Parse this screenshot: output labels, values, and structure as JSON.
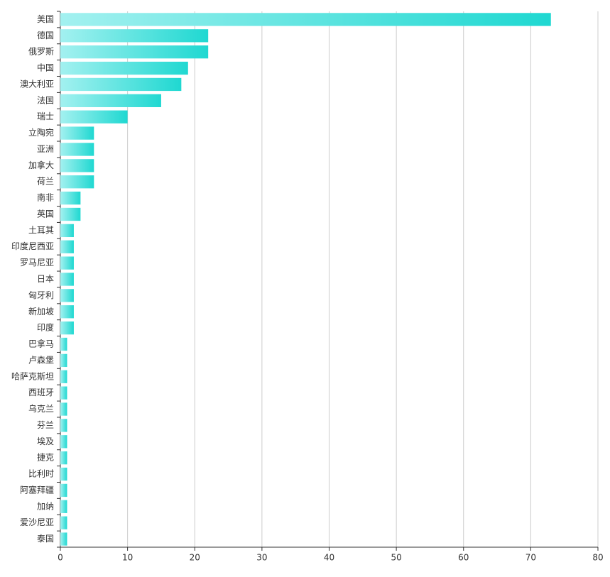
{
  "chart_data": {
    "type": "hbar",
    "categories": [
      "美国",
      "德国",
      "俄罗斯",
      "中国",
      "澳大利亚",
      "法国",
      "瑞士",
      "立陶宛",
      "亚洲",
      "加拿大",
      "荷兰",
      "南非",
      "英国",
      "土耳其",
      "印度尼西亚",
      "罗马尼亚",
      "日本",
      "匈牙利",
      "新加坡",
      "印度",
      "巴拿马",
      "卢森堡",
      "哈萨克斯坦",
      "西班牙",
      "乌克兰",
      "芬兰",
      "埃及",
      "捷克",
      "比利时",
      "阿塞拜疆",
      "加纳",
      "爱沙尼亚",
      "泰国"
    ],
    "values": [
      73,
      22,
      22,
      19,
      18,
      15,
      10,
      5,
      5,
      5,
      5,
      3,
      3,
      2,
      2,
      2,
      2,
      2,
      2,
      2,
      1,
      1,
      1,
      1,
      1,
      1,
      1,
      1,
      1,
      1,
      1,
      1,
      1
    ],
    "color": [
      "#a3f1f0",
      "#1fd8d1"
    ],
    "xlim": [
      0,
      80
    ],
    "xticks": [
      0,
      10,
      20,
      30,
      40,
      50,
      60,
      70,
      80
    ],
    "grid": true
  }
}
